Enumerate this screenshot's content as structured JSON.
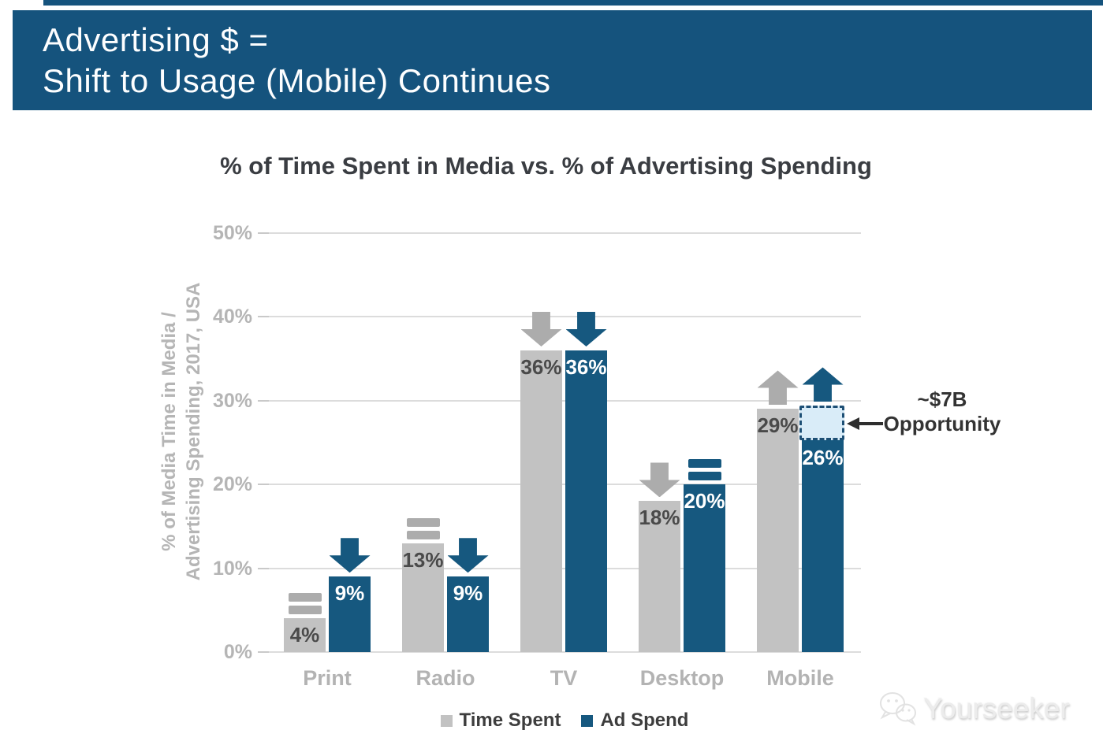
{
  "header": {
    "line1": "Advertising $ =",
    "line2": "Shift to Usage (Mobile) Continues"
  },
  "chart_data": {
    "type": "bar",
    "title": "% of Time Spent in Media vs. % of Advertising Spending",
    "categories": [
      "Print",
      "Radio",
      "TV",
      "Desktop",
      "Mobile"
    ],
    "series": [
      {
        "name": "Time Spent",
        "values": [
          4,
          13,
          36,
          18,
          29
        ],
        "labels": [
          "4%",
          "13%",
          "36%",
          "18%",
          "29%"
        ],
        "color": "#C2C2C2",
        "label_color": "#4A4A4A",
        "icon_color": "#ACACAC",
        "trends": [
          "equal",
          "equal",
          "down",
          "down",
          "up"
        ]
      },
      {
        "name": "Ad Spend",
        "values": [
          9,
          9,
          36,
          20,
          26
        ],
        "labels": [
          "9%",
          "9%",
          "36%",
          "20%",
          "26%"
        ],
        "color": "#16587F",
        "label_color": "#FFFFFF",
        "icon_color": "#16587F",
        "trends": [
          "down",
          "down",
          "down",
          "equal",
          "up"
        ]
      }
    ],
    "ylabel_lines": [
      "% of Media Time in Media /",
      "Advertising Spending, 2017, USA"
    ],
    "ylim": [
      0,
      50
    ],
    "yticks": [
      0,
      10,
      20,
      30,
      40,
      50
    ],
    "ytick_labels": [
      "0%",
      "10%",
      "20%",
      "30%",
      "40%",
      "50%"
    ],
    "grid": true,
    "legend_position": "bottom",
    "annotation": {
      "line1": "~$7B",
      "line2": "Opportunity",
      "category": "Mobile",
      "series": "Ad Spend",
      "box_top_value": 29,
      "box_bottom_value": 26,
      "box_fill": "#D9ECF8",
      "box_border": "#1D4F75",
      "text_color": "#333333"
    }
  },
  "watermark": {
    "text": "Yourseeker"
  },
  "colors": {
    "header_blue": "#15537D",
    "accent_blue": "#16587F",
    "bar_gray": "#C2C2C2",
    "grid_gray": "#DCDCDC",
    "axis_text_gray": "#B5B5B5",
    "title_text": "#3A3D42"
  }
}
